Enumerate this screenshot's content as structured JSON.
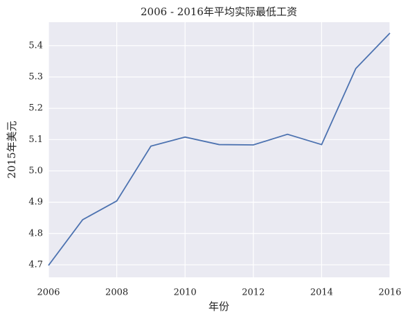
{
  "chart_data": {
    "type": "line",
    "title": "2006 - 2016年平均实际最低工资",
    "x_label": "年份",
    "y_label": "2015年美元",
    "x": [
      2006,
      2007,
      2008,
      2009,
      2010,
      2011,
      2012,
      2013,
      2014,
      2015,
      2016
    ],
    "series": [
      {
        "name": "平均实际最低工资",
        "color": "#4c72b0",
        "values": [
          4.698,
          4.844,
          4.904,
          5.079,
          5.108,
          5.084,
          5.083,
          5.117,
          5.084,
          5.327,
          5.44
        ]
      }
    ],
    "xlim": [
      2006,
      2016
    ],
    "xticks": [
      2006,
      2008,
      2010,
      2012,
      2014,
      2016
    ],
    "ylim": [
      4.66,
      5.475
    ],
    "yticks": [
      4.7,
      4.8,
      4.9,
      {
        "value": 5,
        "label": "5.0"
      },
      5.1,
      5.2,
      5.3,
      5.4
    ],
    "grid": true
  }
}
